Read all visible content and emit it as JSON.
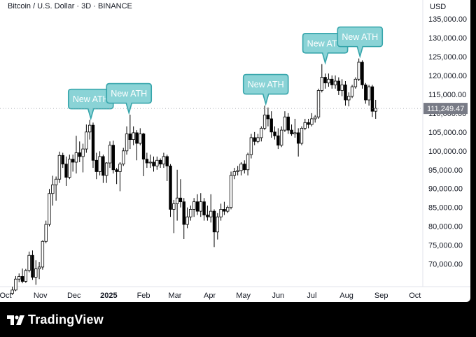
{
  "header": {
    "title": "Bitcoin / U.S. Dollar · 3D · BINANCE",
    "currency": "USD"
  },
  "brand": {
    "name": "TradingView",
    "icon": "tradingview-logo-icon"
  },
  "colors": {
    "bullish": "#ffffff",
    "bearish": "#000000",
    "candle_outline": "#000000",
    "annotation_fill": "#8ad3d6",
    "annotation_stroke": "#36a5ab",
    "price_tag_bg": "#787b86"
  },
  "chart_data": {
    "type": "candlestick",
    "symbol": "Bitcoin / U.S. Dollar",
    "interval": "3D",
    "exchange": "BINANCE",
    "ylim": [
      64000,
      140000
    ],
    "xlim": [
      "2024-09-26",
      "2025-10-08"
    ],
    "y_ticks": [
      {
        "value": 70000,
        "label": "70,000.00"
      },
      {
        "value": 75000,
        "label": "75,000.00"
      },
      {
        "value": 80000,
        "label": "80,000.00"
      },
      {
        "value": 85000,
        "label": "85,000.00"
      },
      {
        "value": 90000,
        "label": "90,000.00"
      },
      {
        "value": 95000,
        "label": "95,000.00"
      },
      {
        "value": 100000,
        "label": "100,000.00"
      },
      {
        "value": 105000,
        "label": "105,000.00"
      },
      {
        "value": 110000,
        "label": "110,000.00"
      },
      {
        "value": 115000,
        "label": "115,000.00"
      },
      {
        "value": 120000,
        "label": "120,000.00"
      },
      {
        "value": 125000,
        "label": "125,000.00"
      },
      {
        "value": 130000,
        "label": "130,000.00"
      },
      {
        "value": 135000,
        "label": "135,000.00"
      }
    ],
    "x_ticks": [
      {
        "date": "2024-10-01",
        "label": "Oct",
        "bold": false
      },
      {
        "date": "2024-11-01",
        "label": "Nov",
        "bold": false
      },
      {
        "date": "2024-12-01",
        "label": "Dec",
        "bold": false
      },
      {
        "date": "2025-01-01",
        "label": "2025",
        "bold": true
      },
      {
        "date": "2025-02-01",
        "label": "Feb",
        "bold": false
      },
      {
        "date": "2025-03-01",
        "label": "Mar",
        "bold": false
      },
      {
        "date": "2025-04-01",
        "label": "Apr",
        "bold": false
      },
      {
        "date": "2025-05-01",
        "label": "May",
        "bold": false
      },
      {
        "date": "2025-06-01",
        "label": "Jun",
        "bold": false
      },
      {
        "date": "2025-07-01",
        "label": "Jul",
        "bold": false
      },
      {
        "date": "2025-08-01",
        "label": "Aug",
        "bold": false
      },
      {
        "date": "2025-09-01",
        "label": "Sep",
        "bold": false
      },
      {
        "date": "2025-10-01",
        "label": "Oct",
        "bold": false
      }
    ],
    "last_price": {
      "value": 111249.47,
      "label": "111,249.47"
    },
    "annotations": [
      {
        "text": "New ATH",
        "date": "2024-12-16",
        "price": 108000
      },
      {
        "text": "New ATH",
        "date": "2025-01-19",
        "price": 109500
      },
      {
        "text": "New ATH",
        "date": "2025-05-21",
        "price": 111900
      },
      {
        "text": "New ATH",
        "date": "2025-07-13",
        "price": 122800
      },
      {
        "text": "New ATH",
        "date": "2025-08-13",
        "price": 124500
      }
    ],
    "candles": [
      {
        "d": "2024-10-07",
        "o": 62200,
        "h": 64000,
        "l": 61800,
        "c": 63100
      },
      {
        "d": "2024-10-10",
        "o": 63100,
        "h": 66800,
        "l": 62800,
        "c": 66000
      },
      {
        "d": "2024-10-13",
        "o": 66000,
        "h": 67500,
        "l": 65200,
        "c": 66700
      },
      {
        "d": "2024-10-16",
        "o": 66700,
        "h": 68800,
        "l": 64900,
        "c": 65400
      },
      {
        "d": "2024-10-19",
        "o": 65400,
        "h": 68700,
        "l": 65000,
        "c": 68300
      },
      {
        "d": "2024-10-22",
        "o": 68300,
        "h": 73300,
        "l": 67800,
        "c": 72300
      },
      {
        "d": "2024-10-25",
        "o": 72300,
        "h": 73600,
        "l": 65800,
        "c": 66500
      },
      {
        "d": "2024-10-28",
        "o": 66500,
        "h": 71000,
        "l": 64500,
        "c": 68700
      },
      {
        "d": "2024-10-31",
        "o": 68700,
        "h": 70500,
        "l": 66000,
        "c": 69200
      },
      {
        "d": "2024-11-03",
        "o": 69200,
        "h": 76300,
        "l": 68500,
        "c": 76000
      },
      {
        "d": "2024-11-06",
        "o": 76000,
        "h": 81500,
        "l": 75500,
        "c": 80500
      },
      {
        "d": "2024-11-09",
        "o": 80500,
        "h": 89900,
        "l": 80000,
        "c": 88700
      },
      {
        "d": "2024-11-12",
        "o": 88700,
        "h": 93400,
        "l": 85500,
        "c": 91000
      },
      {
        "d": "2024-11-15",
        "o": 91000,
        "h": 93200,
        "l": 86800,
        "c": 92500
      },
      {
        "d": "2024-11-18",
        "o": 92500,
        "h": 99800,
        "l": 91500,
        "c": 98800
      },
      {
        "d": "2024-11-21",
        "o": 98800,
        "h": 99500,
        "l": 95500,
        "c": 96500
      },
      {
        "d": "2024-11-24",
        "o": 96500,
        "h": 98500,
        "l": 90700,
        "c": 93000
      },
      {
        "d": "2024-11-27",
        "o": 93000,
        "h": 99000,
        "l": 92500,
        "c": 97800
      },
      {
        "d": "2024-11-30",
        "o": 97800,
        "h": 99000,
        "l": 94500,
        "c": 97000
      },
      {
        "d": "2024-12-03",
        "o": 97000,
        "h": 104000,
        "l": 94000,
        "c": 99500
      },
      {
        "d": "2024-12-06",
        "o": 99500,
        "h": 102500,
        "l": 97000,
        "c": 98500
      },
      {
        "d": "2024-12-09",
        "o": 98500,
        "h": 101900,
        "l": 94300,
        "c": 100500
      },
      {
        "d": "2024-12-12",
        "o": 100500,
        "h": 107000,
        "l": 99500,
        "c": 105000
      },
      {
        "d": "2024-12-15",
        "o": 105000,
        "h": 108200,
        "l": 103000,
        "c": 106800
      },
      {
        "d": "2024-12-18",
        "o": 106800,
        "h": 107500,
        "l": 95500,
        "c": 97500
      },
      {
        "d": "2024-12-21",
        "o": 97500,
        "h": 99500,
        "l": 92500,
        "c": 94500
      },
      {
        "d": "2024-12-24",
        "o": 94500,
        "h": 99900,
        "l": 93500,
        "c": 98500
      },
      {
        "d": "2024-12-27",
        "o": 98500,
        "h": 99000,
        "l": 91500,
        "c": 93500
      },
      {
        "d": "2024-12-30",
        "o": 93500,
        "h": 97000,
        "l": 91500,
        "c": 96800
      },
      {
        "d": "2025-01-02",
        "o": 96800,
        "h": 102500,
        "l": 95500,
        "c": 101500
      },
      {
        "d": "2025-01-05",
        "o": 101500,
        "h": 102700,
        "l": 94000,
        "c": 95000
      },
      {
        "d": "2025-01-08",
        "o": 95000,
        "h": 95500,
        "l": 91200,
        "c": 94500
      },
      {
        "d": "2025-01-11",
        "o": 94500,
        "h": 97000,
        "l": 89300,
        "c": 96500
      },
      {
        "d": "2025-01-14",
        "o": 96500,
        "h": 100800,
        "l": 96000,
        "c": 100000
      },
      {
        "d": "2025-01-17",
        "o": 100000,
        "h": 106500,
        "l": 99000,
        "c": 104500
      },
      {
        "d": "2025-01-20",
        "o": 104500,
        "h": 109600,
        "l": 100500,
        "c": 103000
      },
      {
        "d": "2025-01-23",
        "o": 103000,
        "h": 106500,
        "l": 101500,
        "c": 104800
      },
      {
        "d": "2025-01-26",
        "o": 104800,
        "h": 105500,
        "l": 97500,
        "c": 102000
      },
      {
        "d": "2025-01-29",
        "o": 102000,
        "h": 106000,
        "l": 101500,
        "c": 104500
      },
      {
        "d": "2025-02-01",
        "o": 104500,
        "h": 104800,
        "l": 93300,
        "c": 97800
      },
      {
        "d": "2025-02-04",
        "o": 97800,
        "h": 99500,
        "l": 95500,
        "c": 96800
      },
      {
        "d": "2025-02-07",
        "o": 96800,
        "h": 99000,
        "l": 95500,
        "c": 97000
      },
      {
        "d": "2025-02-10",
        "o": 97000,
        "h": 98500,
        "l": 94500,
        "c": 96000
      },
      {
        "d": "2025-02-13",
        "o": 96000,
        "h": 98500,
        "l": 95000,
        "c": 97500
      },
      {
        "d": "2025-02-16",
        "o": 97500,
        "h": 98000,
        "l": 95500,
        "c": 96500
      },
      {
        "d": "2025-02-19",
        "o": 96500,
        "h": 99500,
        "l": 95500,
        "c": 98500
      },
      {
        "d": "2025-02-22",
        "o": 98500,
        "h": 99000,
        "l": 92000,
        "c": 96000
      },
      {
        "d": "2025-02-25",
        "o": 96000,
        "h": 96500,
        "l": 82500,
        "c": 84500
      },
      {
        "d": "2025-02-28",
        "o": 84500,
        "h": 87000,
        "l": 78200,
        "c": 86000
      },
      {
        "d": "2025-03-03",
        "o": 86000,
        "h": 95000,
        "l": 81500,
        "c": 87500
      },
      {
        "d": "2025-03-06",
        "o": 87500,
        "h": 92500,
        "l": 85000,
        "c": 86500
      },
      {
        "d": "2025-03-09",
        "o": 86500,
        "h": 87500,
        "l": 76600,
        "c": 80500
      },
      {
        "d": "2025-03-12",
        "o": 80500,
        "h": 85000,
        "l": 79500,
        "c": 82500
      },
      {
        "d": "2025-03-15",
        "o": 82500,
        "h": 85500,
        "l": 81500,
        "c": 84500
      },
      {
        "d": "2025-03-18",
        "o": 84500,
        "h": 87500,
        "l": 82500,
        "c": 86500
      },
      {
        "d": "2025-03-21",
        "o": 86500,
        "h": 88500,
        "l": 83000,
        "c": 84000
      },
      {
        "d": "2025-03-24",
        "o": 84000,
        "h": 88800,
        "l": 82500,
        "c": 86500
      },
      {
        "d": "2025-03-27",
        "o": 86500,
        "h": 87500,
        "l": 81500,
        "c": 83000
      },
      {
        "d": "2025-03-30",
        "o": 83000,
        "h": 85500,
        "l": 81500,
        "c": 82500
      },
      {
        "d": "2025-04-02",
        "o": 82500,
        "h": 88500,
        "l": 81000,
        "c": 84000
      },
      {
        "d": "2025-04-05",
        "o": 84000,
        "h": 84500,
        "l": 74500,
        "c": 78500
      },
      {
        "d": "2025-04-08",
        "o": 78500,
        "h": 83500,
        "l": 76500,
        "c": 82500
      },
      {
        "d": "2025-04-11",
        "o": 82500,
        "h": 86000,
        "l": 81500,
        "c": 84500
      },
      {
        "d": "2025-04-14",
        "o": 84500,
        "h": 86500,
        "l": 83000,
        "c": 84000
      },
      {
        "d": "2025-04-17",
        "o": 84000,
        "h": 85500,
        "l": 83500,
        "c": 85000
      },
      {
        "d": "2025-04-20",
        "o": 85000,
        "h": 94500,
        "l": 84500,
        "c": 93500
      },
      {
        "d": "2025-04-23",
        "o": 93500,
        "h": 95500,
        "l": 92500,
        "c": 94500
      },
      {
        "d": "2025-04-26",
        "o": 94500,
        "h": 96000,
        "l": 93500,
        "c": 94800
      },
      {
        "d": "2025-04-29",
        "o": 94800,
        "h": 97000,
        "l": 93500,
        "c": 96500
      },
      {
        "d": "2025-05-02",
        "o": 96500,
        "h": 97500,
        "l": 94000,
        "c": 95000
      },
      {
        "d": "2025-05-05",
        "o": 95000,
        "h": 99500,
        "l": 93500,
        "c": 99000
      },
      {
        "d": "2025-05-08",
        "o": 99000,
        "h": 104500,
        "l": 98000,
        "c": 103500
      },
      {
        "d": "2025-05-11",
        "o": 103500,
        "h": 105000,
        "l": 101500,
        "c": 102500
      },
      {
        "d": "2025-05-14",
        "o": 102500,
        "h": 104500,
        "l": 102000,
        "c": 103500
      },
      {
        "d": "2025-05-17",
        "o": 103500,
        "h": 106500,
        "l": 102500,
        "c": 106000
      },
      {
        "d": "2025-05-20",
        "o": 106000,
        "h": 112000,
        "l": 105500,
        "c": 109500
      },
      {
        "d": "2025-05-23",
        "o": 109500,
        "h": 111500,
        "l": 106500,
        "c": 108500
      },
      {
        "d": "2025-05-26",
        "o": 108500,
        "h": 110500,
        "l": 103500,
        "c": 105000
      },
      {
        "d": "2025-05-29",
        "o": 105000,
        "h": 106500,
        "l": 103000,
        "c": 104000
      },
      {
        "d": "2025-06-01",
        "o": 104000,
        "h": 106000,
        "l": 100500,
        "c": 101500
      },
      {
        "d": "2025-06-04",
        "o": 101500,
        "h": 106500,
        "l": 101000,
        "c": 105500
      },
      {
        "d": "2025-06-07",
        "o": 105500,
        "h": 110500,
        "l": 105000,
        "c": 109000
      },
      {
        "d": "2025-06-10",
        "o": 109000,
        "h": 110000,
        "l": 104500,
        "c": 105500
      },
      {
        "d": "2025-06-13",
        "o": 105500,
        "h": 107000,
        "l": 104000,
        "c": 104500
      },
      {
        "d": "2025-06-16",
        "o": 104500,
        "h": 108500,
        "l": 103500,
        "c": 104800
      },
      {
        "d": "2025-06-19",
        "o": 104800,
        "h": 106000,
        "l": 98500,
        "c": 102000
      },
      {
        "d": "2025-06-22",
        "o": 102000,
        "h": 106500,
        "l": 101500,
        "c": 106000
      },
      {
        "d": "2025-06-25",
        "o": 106000,
        "h": 108500,
        "l": 105500,
        "c": 107500
      },
      {
        "d": "2025-06-28",
        "o": 107500,
        "h": 108500,
        "l": 106000,
        "c": 107000
      },
      {
        "d": "2025-07-01",
        "o": 107000,
        "h": 110000,
        "l": 106500,
        "c": 108500
      },
      {
        "d": "2025-07-04",
        "o": 108500,
        "h": 109500,
        "l": 107500,
        "c": 109000
      },
      {
        "d": "2025-07-07",
        "o": 109000,
        "h": 116500,
        "l": 108500,
        "c": 116000
      },
      {
        "d": "2025-07-10",
        "o": 116000,
        "h": 123000,
        "l": 115500,
        "c": 119500
      },
      {
        "d": "2025-07-13",
        "o": 119500,
        "h": 120500,
        "l": 116500,
        "c": 118000
      },
      {
        "d": "2025-07-16",
        "o": 118000,
        "h": 120500,
        "l": 117000,
        "c": 119000
      },
      {
        "d": "2025-07-19",
        "o": 119000,
        "h": 120000,
        "l": 116500,
        "c": 117500
      },
      {
        "d": "2025-07-22",
        "o": 117500,
        "h": 120000,
        "l": 116500,
        "c": 118500
      },
      {
        "d": "2025-07-25",
        "o": 118500,
        "h": 119500,
        "l": 114800,
        "c": 116000
      },
      {
        "d": "2025-07-28",
        "o": 116000,
        "h": 119000,
        "l": 114500,
        "c": 117500
      },
      {
        "d": "2025-07-31",
        "o": 117500,
        "h": 118500,
        "l": 112000,
        "c": 113500
      },
      {
        "d": "2025-08-03",
        "o": 113500,
        "h": 115500,
        "l": 111800,
        "c": 114500
      },
      {
        "d": "2025-08-06",
        "o": 114500,
        "h": 117500,
        "l": 114000,
        "c": 117000
      },
      {
        "d": "2025-08-09",
        "o": 117000,
        "h": 119500,
        "l": 116500,
        "c": 119000
      },
      {
        "d": "2025-08-12",
        "o": 119000,
        "h": 124500,
        "l": 118500,
        "c": 123500
      },
      {
        "d": "2025-08-15",
        "o": 123500,
        "h": 124000,
        "l": 116500,
        "c": 117500
      },
      {
        "d": "2025-08-18",
        "o": 117500,
        "h": 118000,
        "l": 112500,
        "c": 113500
      },
      {
        "d": "2025-08-21",
        "o": 113500,
        "h": 117500,
        "l": 112000,
        "c": 117000
      },
      {
        "d": "2025-08-24",
        "o": 117000,
        "h": 117500,
        "l": 109000,
        "c": 110500
      },
      {
        "d": "2025-08-27",
        "o": 110500,
        "h": 113500,
        "l": 108500,
        "c": 111249.47
      }
    ]
  }
}
